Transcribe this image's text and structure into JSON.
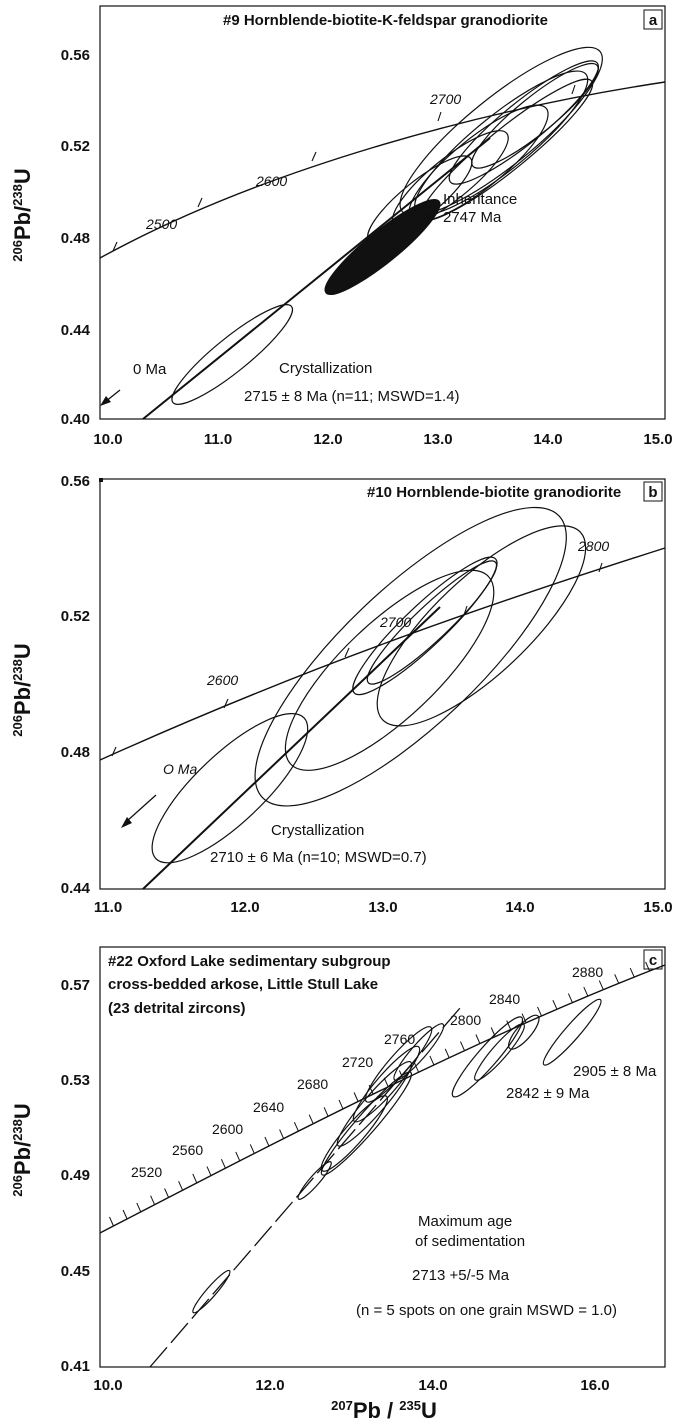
{
  "chart_data": [
    {
      "type": "scatter",
      "panel_letter": "a",
      "title": "#9 Hornblende-biotite-K-feldspar granodiorite",
      "ylabel": {
        "sup": "206",
        "main": "Pb/",
        "sup2": "238",
        "end": "U"
      },
      "xlim": [
        10.0,
        15.0
      ],
      "ylim": [
        0.4,
        0.57
      ],
      "x_ticks": [
        "10.0",
        "11.0",
        "12.0",
        "13.0",
        "14.0",
        "15.0"
      ],
      "y_ticks": [
        "0.40",
        "0.44",
        "0.48",
        "0.52",
        "0.56"
      ],
      "concordia_ages": [
        "2500",
        "2600",
        "2700"
      ],
      "origin_label": "0 Ma",
      "annotations": [
        "Inheritance",
        "2747 Ma",
        "Crystallization",
        "2715 ± 8 Ma (n=11; MSWD=1.4)"
      ],
      "ellipses": [
        {
          "x": 11.17,
          "y": 0.4285,
          "len_x": 1.05,
          "w": 0.0075,
          "fill": false
        },
        {
          "x": 12.5,
          "y": 0.476,
          "len_x": 1.0,
          "w": 0.007,
          "fill": true
        },
        {
          "x": 12.83,
          "y": 0.497,
          "len_x": 0.9,
          "w": 0.008,
          "fill": false
        },
        {
          "x": 13.1,
          "y": 0.506,
          "len_x": 1.0,
          "w": 0.009,
          "fill": false
        },
        {
          "x": 13.35,
          "y": 0.513,
          "len_x": 1.2,
          "w": 0.011,
          "fill": false
        },
        {
          "x": 13.55,
          "y": 0.522,
          "len_x": 1.5,
          "w": 0.012,
          "fill": false
        },
        {
          "x": 13.6,
          "y": 0.519,
          "len_x": 1.5,
          "w": 0.009,
          "fill": false
        },
        {
          "x": 13.55,
          "y": 0.527,
          "len_x": 1.75,
          "w": 0.015,
          "fill": false
        },
        {
          "x": 13.75,
          "y": 0.531,
          "len_x": 1.3,
          "w": 0.009,
          "fill": false
        },
        {
          "x": 13.85,
          "y": 0.534,
          "len_x": 1.1,
          "w": 0.008,
          "fill": false
        }
      ]
    },
    {
      "type": "scatter",
      "panel_letter": "b",
      "title": "#10 Hornblende-biotite granodiorite",
      "ylabel": {
        "sup": "206",
        "main": "Pb/",
        "sup2": "238",
        "end": "U"
      },
      "xlim": [
        11.0,
        15.0
      ],
      "ylim": [
        0.44,
        0.56
      ],
      "x_ticks": [
        "11.0",
        "12.0",
        "13.0",
        "14.0",
        "15.0"
      ],
      "y_ticks": [
        "0.44",
        "0.48",
        "0.52",
        "0.56"
      ],
      "concordia_ages": [
        "2600",
        "2700",
        "2800"
      ],
      "origin_label": "O Ma",
      "annotations": [
        "Crystallization",
        "2710 ± 6 Ma (n=10; MSWD=0.7)"
      ],
      "ellipses": [
        {
          "x": 11.92,
          "y": 0.4695,
          "len_x": 1.05,
          "w": 0.01,
          "fill": false
        },
        {
          "x": 13.2,
          "y": 0.508,
          "len_x": 2.1,
          "w": 0.02,
          "fill": false
        },
        {
          "x": 13.05,
          "y": 0.504,
          "len_x": 1.4,
          "w": 0.014,
          "fill": false
        },
        {
          "x": 13.7,
          "y": 0.517,
          "len_x": 1.4,
          "w": 0.014,
          "fill": false
        },
        {
          "x": 13.3,
          "y": 0.517,
          "len_x": 1.0,
          "w": 0.006,
          "fill": false
        },
        {
          "x": 13.35,
          "y": 0.518,
          "len_x": 0.9,
          "w": 0.005,
          "fill": false
        }
      ]
    },
    {
      "type": "scatter",
      "panel_letter": "c",
      "title_lines": [
        "#22 Oxford Lake sedimentary subgroup",
        "cross-bedded arkose, Little Stull Lake",
        "(23 detrital zircons)"
      ],
      "ylabel": {
        "sup": "206",
        "main": "Pb/",
        "sup2": "238",
        "end": "U"
      },
      "xlabel": {
        "sup": "207",
        "main": "Pb / ",
        "sup2": "235",
        "end": "U"
      },
      "xlim": [
        10.0,
        17.0
      ],
      "ylim": [
        0.41,
        0.58
      ],
      "x_ticks": [
        "10.0",
        "12.0",
        "14.0",
        "16.0"
      ],
      "y_ticks": [
        "0.41",
        "0.45",
        "0.49",
        "0.53",
        "0.57"
      ],
      "concordia_ages": [
        "2520",
        "2560",
        "2600",
        "2640",
        "2680",
        "2720",
        "2760",
        "2800",
        "2840",
        "2880"
      ],
      "annotations": [
        "2905 ± 8 Ma",
        "2842 ± 9 Ma",
        "Maximum age",
        "of sedimentation",
        "2713 +5/-5 Ma",
        "(n = 5 spots on one grain MSWD = 1.0)"
      ],
      "ellipses": [
        {
          "x": 11.38,
          "y": 0.4405,
          "len_x": 0.45,
          "w": 0.002,
          "fill": false
        },
        {
          "x": 12.66,
          "y": 0.4855,
          "len_x": 0.4,
          "w": 0.002,
          "fill": false
        },
        {
          "x": 13.15,
          "y": 0.5045,
          "len_x": 0.8,
          "w": 0.004,
          "fill": false
        },
        {
          "x": 13.3,
          "y": 0.5085,
          "len_x": 1.1,
          "w": 0.004,
          "fill": false
        },
        {
          "x": 13.4,
          "y": 0.5165,
          "len_x": 0.9,
          "w": 0.004,
          "fill": false
        },
        {
          "x": 13.55,
          "y": 0.5245,
          "len_x": 0.8,
          "w": 0.004,
          "fill": false
        },
        {
          "x": 13.7,
          "y": 0.5325,
          "len_x": 0.8,
          "w": 0.004,
          "fill": false
        },
        {
          "x": 13.95,
          "y": 0.5375,
          "len_x": 0.6,
          "w": 0.003,
          "fill": false
        },
        {
          "x": 14.8,
          "y": 0.5355,
          "len_x": 0.85,
          "w": 0.004,
          "fill": false
        },
        {
          "x": 14.95,
          "y": 0.5375,
          "len_x": 0.6,
          "w": 0.003,
          "fill": false
        },
        {
          "x": 15.25,
          "y": 0.5455,
          "len_x": 0.35,
          "w": 0.003,
          "fill": false
        },
        {
          "x": 15.85,
          "y": 0.5455,
          "len_x": 0.7,
          "w": 0.003,
          "fill": false
        }
      ]
    }
  ]
}
